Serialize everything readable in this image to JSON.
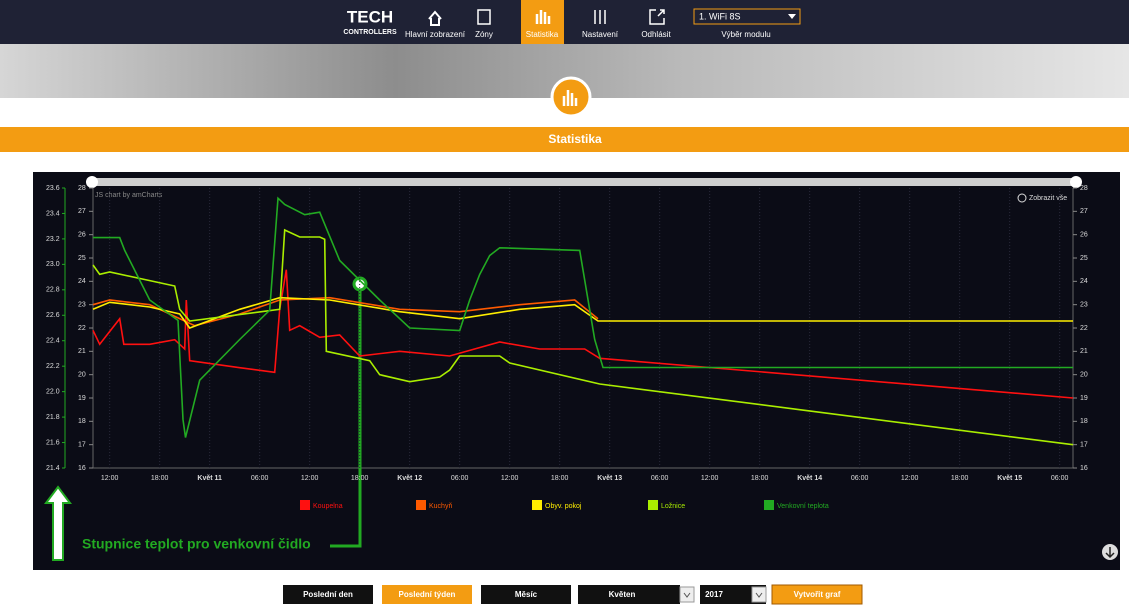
{
  "nav": {
    "logo": "TECH",
    "logo_sub": "CONTROLLERS",
    "items": [
      "Hlavní zobrazení",
      "Zóny",
      "Statistika",
      "Nastavení",
      "Odhlásit"
    ],
    "module_select": "1. WiFi 8S",
    "module_label": "Výběr modulu"
  },
  "section_title": "Statistika",
  "chart_data": {
    "type": "line",
    "credit": "JS chart by amCharts",
    "zoom_button": "Zobrazit vše",
    "xlim": [
      10,
      127.6
    ],
    "xticks": [
      {
        "value": 12,
        "label": "12:00"
      },
      {
        "value": 18,
        "label": "18:00"
      },
      {
        "value": 24,
        "label": "Květ 11"
      },
      {
        "value": 30,
        "label": "06:00"
      },
      {
        "value": 36,
        "label": "12:00"
      },
      {
        "value": 42,
        "label": "18:00"
      },
      {
        "value": 48,
        "label": "Květ 12"
      },
      {
        "value": 54,
        "label": "06:00"
      },
      {
        "value": 60,
        "label": "12:00"
      },
      {
        "value": 66,
        "label": "18:00"
      },
      {
        "value": 72,
        "label": "Květ 13"
      },
      {
        "value": 78,
        "label": "06:00"
      },
      {
        "value": 84,
        "label": "12:00"
      },
      {
        "value": 90,
        "label": "18:00"
      },
      {
        "value": 96,
        "label": "Květ 14"
      },
      {
        "value": 102,
        "label": "06:00"
      },
      {
        "value": 108,
        "label": "12:00"
      },
      {
        "value": 114,
        "label": "18:00"
      },
      {
        "value": 120,
        "label": "Květ 15"
      },
      {
        "value": 126,
        "label": "06:00"
      }
    ],
    "ylim": [
      16,
      28
    ],
    "yticks": [
      16,
      17,
      18,
      19,
      20,
      21,
      22,
      23,
      24,
      25,
      26,
      27,
      28
    ],
    "y2lim": [
      21.4,
      23.6
    ],
    "y2ticks": [
      21.4,
      21.6,
      21.8,
      {
        "value": 22,
        "label": "22.0"
      },
      22.2,
      22.4,
      22.6,
      22.8,
      {
        "value": 23,
        "label": "23.0"
      },
      23.2,
      23.4,
      23.6
    ],
    "y2color": "#22aa22",
    "series": [
      {
        "name": "Koupelna",
        "color": "#ff1010",
        "x": [
          10,
          10.8,
          13.2,
          13.7,
          16.8,
          19.8,
          21,
          21.2,
          21.6,
          27.6,
          31.8,
          32.4,
          33.2,
          33.6,
          34.8,
          37.2,
          39.6,
          42,
          46.8,
          52.8,
          58.8,
          63.6,
          69,
          70.8,
          127.6
        ],
        "values": [
          21.9,
          21.3,
          22.4,
          21.3,
          21.3,
          21.5,
          21.1,
          23.2,
          20.6,
          20.3,
          20.1,
          22.8,
          24.5,
          21.9,
          22.1,
          21.6,
          21.7,
          20.8,
          21.0,
          20.8,
          21.4,
          21.1,
          21.1,
          20.7,
          19.0
        ]
      },
      {
        "name": "Kuchyň",
        "color": "#ff5a00",
        "x": [
          10,
          12,
          16.8,
          21,
          22.2,
          27.6,
          32.4,
          38.4,
          46.8,
          54,
          61.2,
          67.8,
          70.6
        ],
        "values": [
          23.0,
          23.2,
          23.0,
          22.3,
          22.1,
          22.6,
          23.2,
          23.3,
          22.8,
          22.7,
          23.0,
          23.2,
          22.4
        ]
      },
      {
        "name": "Obyv. pokoj",
        "color": "#ffee00",
        "x": [
          10,
          12,
          16.8,
          20.4,
          21.6,
          27.6,
          32.4,
          38.4,
          46.8,
          54,
          61.2,
          67.8,
          70.6,
          127.6
        ],
        "values": [
          22.8,
          23.1,
          22.9,
          22.6,
          22.0,
          22.8,
          23.3,
          23.2,
          22.7,
          22.4,
          22.8,
          23.0,
          22.3,
          22.3
        ]
      },
      {
        "name": "Ložnice",
        "color": "#aaee00",
        "x": [
          10,
          10.8,
          12,
          19.8,
          20.4,
          21.6,
          32.4,
          33,
          34.8,
          37.2,
          37.8,
          38,
          43.2,
          44.4,
          48,
          51.6,
          52.8,
          54,
          58.8,
          60,
          70.8,
          94.8,
          127.6
        ],
        "values": [
          24.7,
          24.3,
          24.4,
          23.8,
          22.8,
          22.3,
          22.8,
          26.2,
          25.9,
          25.9,
          25.8,
          21.0,
          20.6,
          20.0,
          19.7,
          19.9,
          20.2,
          20.8,
          20.8,
          20.5,
          19.6,
          18.5,
          17.0
        ]
      },
      {
        "name": "Venkovní teplota",
        "color": "#22aa22",
        "axis": "y2",
        "x": [
          10,
          13.2,
          13.8,
          16.8,
          20.2,
          20.8,
          21.1,
          22.8,
          27.6,
          31.2,
          32.2,
          33,
          35.4,
          37.2,
          39.6,
          44.4,
          48,
          54,
          55.2,
          56.4,
          57.6,
          58.8,
          68.4,
          70.2,
          71.2,
          127.6
        ],
        "values": [
          23.21,
          23.21,
          23.11,
          22.72,
          22.56,
          21.78,
          21.64,
          22.09,
          22.41,
          22.64,
          23.52,
          23.47,
          23.39,
          23.41,
          23.03,
          22.72,
          22.5,
          22.48,
          22.72,
          22.92,
          23.07,
          23.13,
          23.11,
          22.41,
          22.19,
          22.19
        ]
      }
    ]
  },
  "annotation": "Stupnice teplot pro venkovní čidlo",
  "controls": {
    "buttons": [
      "Poslední den",
      "Poslední týden",
      "Měsíc"
    ],
    "month": "Květen",
    "year": "2017",
    "submit": "Vytvořit graf"
  }
}
